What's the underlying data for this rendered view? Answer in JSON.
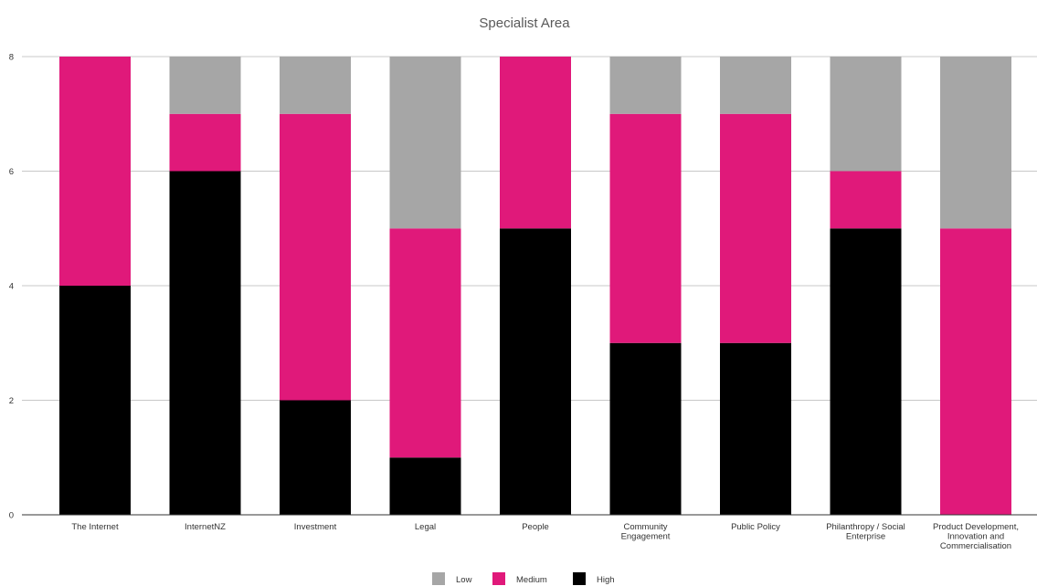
{
  "chart_data": {
    "type": "bar",
    "stacked": true,
    "title": "Specialist Area",
    "xlabel": "",
    "ylabel": "",
    "ylim": [
      0,
      8
    ],
    "yticks": [
      0,
      2,
      4,
      6,
      8
    ],
    "grid": true,
    "legend_position": "bottom",
    "categories": [
      [
        "The Internet"
      ],
      [
        "InternetNZ"
      ],
      [
        "Investment"
      ],
      [
        "Legal"
      ],
      [
        "People"
      ],
      [
        "Community",
        "Engagement"
      ],
      [
        "Public Policy"
      ],
      [
        "Philanthropy / Social",
        "Enterprise"
      ],
      [
        "Product Development,",
        "Innovation and",
        "Commercialisation"
      ]
    ],
    "series": [
      {
        "name": "High",
        "color": "#000000",
        "values": [
          4,
          6,
          2,
          1,
          5,
          3,
          3,
          5,
          0
        ]
      },
      {
        "name": "Medium",
        "color": "#e0197a",
        "values": [
          4,
          1,
          5,
          4,
          3,
          4,
          4,
          1,
          5
        ]
      },
      {
        "name": "Low",
        "color": "#a6a6a6",
        "values": [
          0,
          1,
          1,
          3,
          0,
          1,
          1,
          2,
          3
        ]
      }
    ],
    "legend_order": [
      "Low",
      "Medium",
      "High"
    ]
  }
}
